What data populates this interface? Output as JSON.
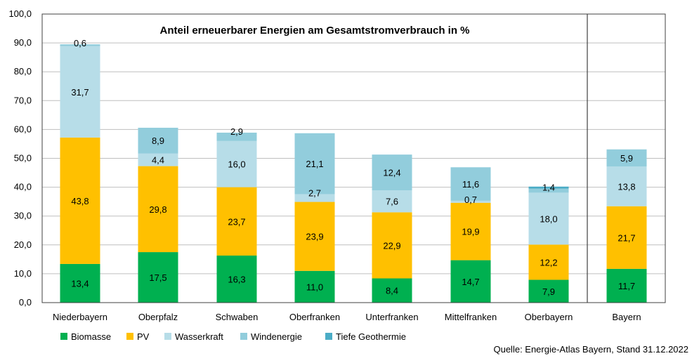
{
  "chart_data": {
    "type": "bar",
    "stacked": true,
    "title": "Anteil erneuerbarer Energien am Gesamtstromverbrauch in %",
    "categories": [
      "Niederbayern",
      "Oberpfalz",
      "Schwaben",
      "Oberfranken",
      "Unterfranken",
      "Mittelfranken",
      "Oberbayern",
      "Bayern"
    ],
    "series": [
      {
        "name": "Biomasse",
        "color": "#00b050",
        "values": [
          13.4,
          17.5,
          16.3,
          11.0,
          8.4,
          14.7,
          7.9,
          11.7
        ],
        "labels": [
          "13,4",
          "17,5",
          "16,3",
          "11,0",
          "8,4",
          "14,7",
          "7,9",
          "11,7"
        ]
      },
      {
        "name": "PV",
        "color": "#ffc000",
        "values": [
          43.8,
          29.8,
          23.7,
          23.9,
          22.9,
          19.9,
          12.2,
          21.7
        ],
        "labels": [
          "43,8",
          "29,8",
          "23,7",
          "23,9",
          "22,9",
          "19,9",
          "12,2",
          "21,7"
        ]
      },
      {
        "name": "Wasserkraft",
        "color": "#b7dde8",
        "values": [
          31.7,
          4.4,
          16.0,
          2.7,
          7.6,
          0.7,
          18.0,
          13.8
        ],
        "labels": [
          "31,7",
          "4,4",
          "16,0",
          "2,7",
          "7,6",
          "0,7",
          "18,0",
          "13,8"
        ]
      },
      {
        "name": "Windenergie",
        "color": "#92cddc",
        "values": [
          0.6,
          8.9,
          2.9,
          21.1,
          12.4,
          11.6,
          1.4,
          5.9
        ],
        "labels": [
          "0,6",
          "8,9",
          "2,9",
          "21,1",
          "12,4",
          "11,6",
          "1,4",
          "5,9"
        ]
      },
      {
        "name": "Tiefe Geothermie",
        "color": "#4bacc6",
        "values": [
          0,
          0,
          0,
          0,
          0,
          0,
          0.7,
          0
        ],
        "labels": [
          "",
          "",
          "",
          "",
          "",
          "",
          "",
          ""
        ]
      }
    ],
    "ylim": [
      0,
      100
    ],
    "yticks": [
      "0,0",
      "10,0",
      "20,0",
      "30,0",
      "40,0",
      "50,0",
      "60,0",
      "70,0",
      "80,0",
      "90,0",
      "100,0"
    ],
    "grid": true,
    "legend": "bottom"
  },
  "source": "Quelle: Energie-Atlas Bayern, Stand 31.12.2022"
}
